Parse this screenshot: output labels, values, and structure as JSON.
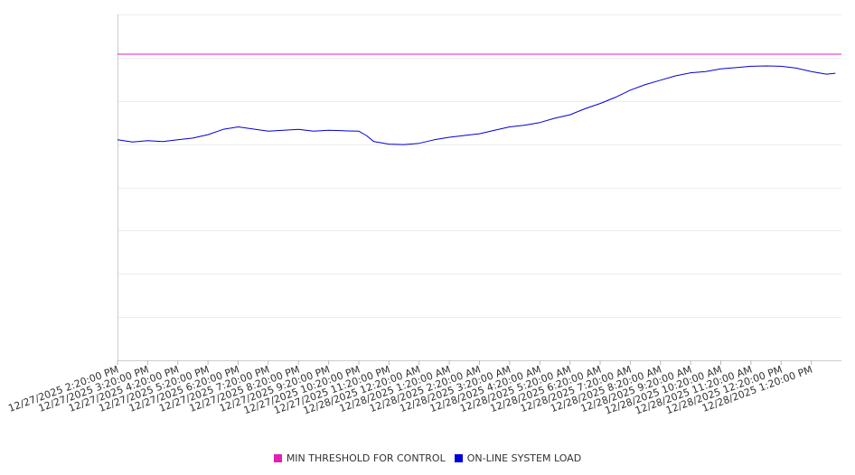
{
  "chart_data": {
    "type": "line",
    "x_categories": [
      "12/27/2025 2:20:00 PM",
      "12/27/2025 3:20:00 PM",
      "12/27/2025 4:20:00 PM",
      "12/27/2025 5:20:00 PM",
      "12/27/2025 6:20:00 PM",
      "12/27/2025 7:20:00 PM",
      "12/27/2025 8:20:00 PM",
      "12/27/2025 9:20:00 PM",
      "12/27/2025 10:20:00 PM",
      "12/27/2025 11:20:00 PM",
      "12/28/2025 12:20:00 AM",
      "12/28/2025 1:20:00 AM",
      "12/28/2025 2:20:00 AM",
      "12/28/2025 3:20:00 AM",
      "12/28/2025 4:20:00 AM",
      "12/28/2025 5:20:00 AM",
      "12/28/2025 6:20:00 AM",
      "12/28/2025 7:20:00 AM",
      "12/28/2025 8:20:00 AM",
      "12/28/2025 9:20:00 AM",
      "12/28/2025 10:20:00 AM",
      "12/28/2025 11:20:00 AM",
      "12/28/2025 12:20:00 PM",
      "12/28/2025 1:20:00 PM"
    ],
    "ylim": [
      0,
      8
    ],
    "grid": "horizontal",
    "legend_position": "bottom",
    "series": [
      {
        "name": "MIN THRESHOLD FOR CONTROL",
        "color": "#e020b8",
        "style": "constant",
        "value": 7.08
      },
      {
        "name": "ON-LINE SYSTEM LOAD",
        "color": "#0000d8",
        "x": [
          0,
          0.5,
          1,
          1.5,
          2,
          2.5,
          3,
          3.5,
          4,
          4.5,
          5,
          5.5,
          6,
          6.5,
          7,
          7.5,
          8,
          8.25,
          8.5,
          9,
          9.5,
          10,
          10.5,
          11,
          11.5,
          12,
          12.5,
          13,
          13.5,
          14,
          14.5,
          15,
          15.5,
          16,
          16.5,
          17,
          17.5,
          18,
          18.5,
          19,
          19.5,
          20,
          20.5,
          21,
          21.5,
          22,
          22.5,
          23,
          23.5,
          23.8
        ],
        "values": [
          5.1,
          5.05,
          5.08,
          5.06,
          5.1,
          5.14,
          5.22,
          5.34,
          5.4,
          5.35,
          5.3,
          5.32,
          5.34,
          5.3,
          5.32,
          5.31,
          5.3,
          5.2,
          5.06,
          5.0,
          4.99,
          5.02,
          5.1,
          5.16,
          5.2,
          5.24,
          5.32,
          5.4,
          5.44,
          5.5,
          5.6,
          5.68,
          5.82,
          5.94,
          6.08,
          6.25,
          6.38,
          6.48,
          6.58,
          6.65,
          6.68,
          6.74,
          6.77,
          6.8,
          6.81,
          6.8,
          6.76,
          6.68,
          6.62,
          6.64
        ]
      }
    ]
  }
}
